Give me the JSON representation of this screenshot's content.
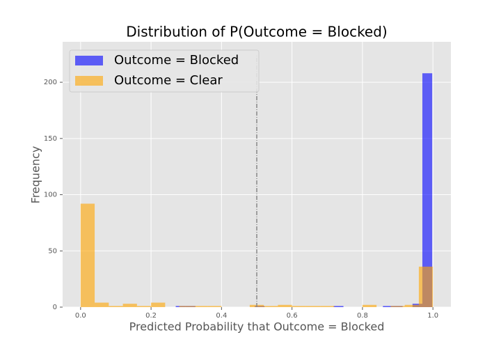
{
  "chart_data": {
    "type": "histogram",
    "title": "Distribution of P(Outcome = Blocked)",
    "x_label": "Predicted Probability that Outcome = Blocked",
    "y_label": "Frequency",
    "series": [
      {
        "name": "Outcome = Blocked",
        "color": "#0000ff",
        "bins": [
          0.27,
          0.298,
          0.326,
          0.354,
          0.382,
          0.41,
          0.438,
          0.466,
          0.494,
          0.522,
          0.55,
          0.578,
          0.606,
          0.634,
          0.662,
          0.69,
          0.718,
          0.746,
          0.774,
          0.802,
          0.83,
          0.858,
          0.886,
          0.914,
          0.942,
          0.97,
          0.998
        ],
        "values": [
          1,
          1,
          0,
          0,
          0,
          0,
          0,
          0,
          1,
          0,
          0,
          0,
          0,
          0,
          0,
          0,
          1,
          0,
          0,
          0,
          0,
          1,
          1,
          0,
          3,
          208
        ]
      },
      {
        "name": "Outcome = Clear",
        "color": "#ffa500",
        "bins": [
          0,
          0.04,
          0.08,
          0.12,
          0.16,
          0.2,
          0.24,
          0.28,
          0.32,
          0.36,
          0.4,
          0.44,
          0.48,
          0.52,
          0.56,
          0.6,
          0.64,
          0.68,
          0.72,
          0.76,
          0.8,
          0.84,
          0.88,
          0.92,
          0.96,
          1
        ],
        "values": [
          92,
          4,
          1,
          3,
          1,
          4,
          0,
          1,
          1,
          1,
          0,
          0,
          2,
          1,
          2,
          1,
          1,
          1,
          0,
          0,
          2,
          0,
          1,
          2,
          36
        ]
      }
    ],
    "threshold": 0.5,
    "xlim": [
      -0.051,
      1.051
    ],
    "ylim": [
      0,
      236
    ],
    "xticks": [
      {
        "value": 0,
        "label": "0.0"
      },
      0.2,
      0.4,
      0.6,
      0.8,
      {
        "value": 1,
        "label": "1.0"
      }
    ],
    "yticks": [
      0,
      50,
      100,
      150,
      200
    ],
    "grid": true,
    "legend": "upper-left"
  }
}
